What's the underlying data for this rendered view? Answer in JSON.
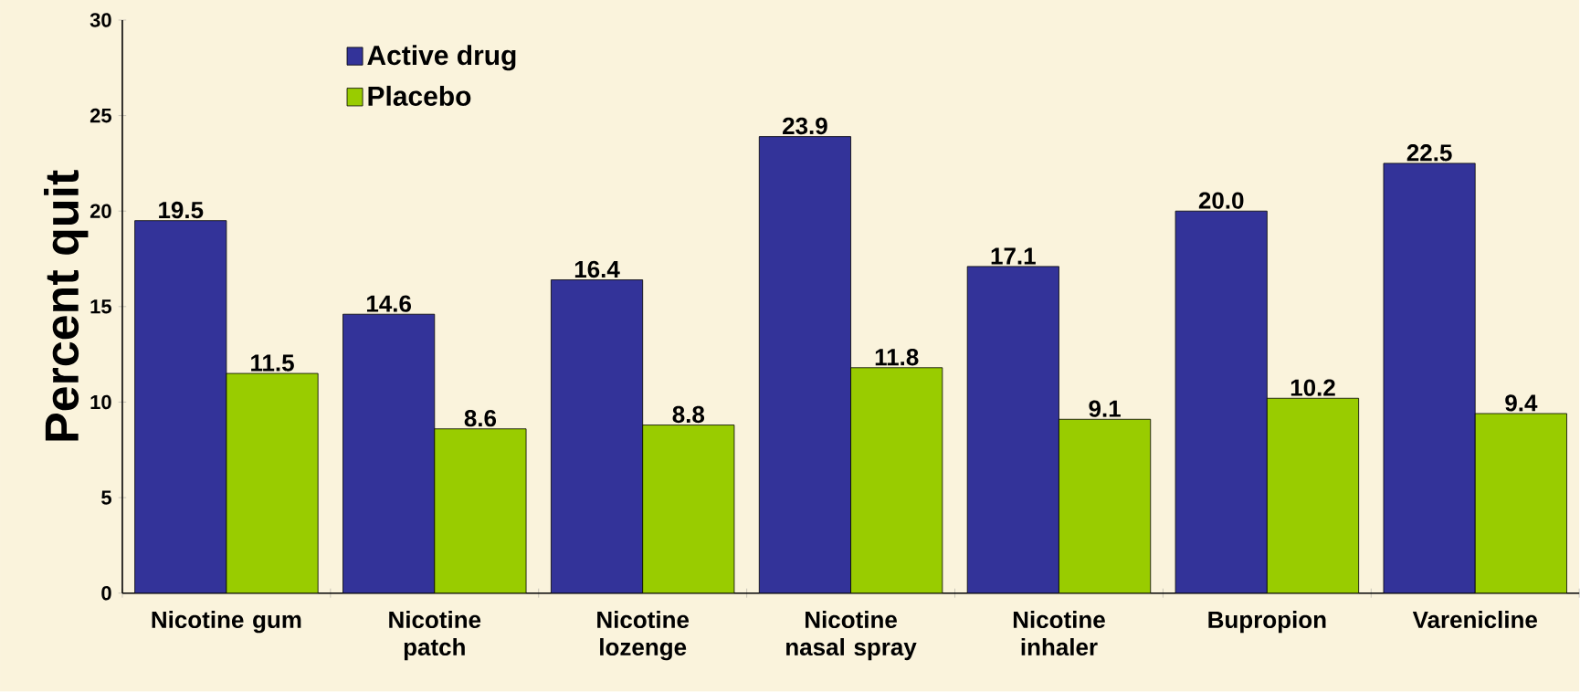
{
  "chart_data": {
    "type": "bar",
    "ylabel": "Percent quit",
    "categories": [
      "Nicotine gum",
      "Nicotine patch",
      "Nicotine lozenge",
      "Nicotine nasal spray",
      "Nicotine inhaler",
      "Bupropion",
      "Varenicline"
    ],
    "series": [
      {
        "name": "Active drug",
        "color": "#333399",
        "values": [
          19.5,
          14.6,
          16.4,
          23.9,
          17.1,
          20.0,
          22.5
        ],
        "value_labels": [
          "19.5",
          "14.6",
          "16.4",
          "23.9",
          "17.1",
          "20.0",
          "22.5"
        ]
      },
      {
        "name": "Placebo",
        "color": "#99cc00",
        "values": [
          11.5,
          8.6,
          8.8,
          11.8,
          9.1,
          10.2,
          9.4
        ],
        "value_labels": [
          "11.5",
          "8.6",
          "8.8",
          "11.8",
          "9.1",
          "10.2",
          "9.4"
        ]
      }
    ],
    "ylim": [
      0,
      30
    ],
    "yticks": [
      0,
      5,
      10,
      15,
      20,
      25,
      30
    ],
    "legend": "top left",
    "grid": false
  }
}
